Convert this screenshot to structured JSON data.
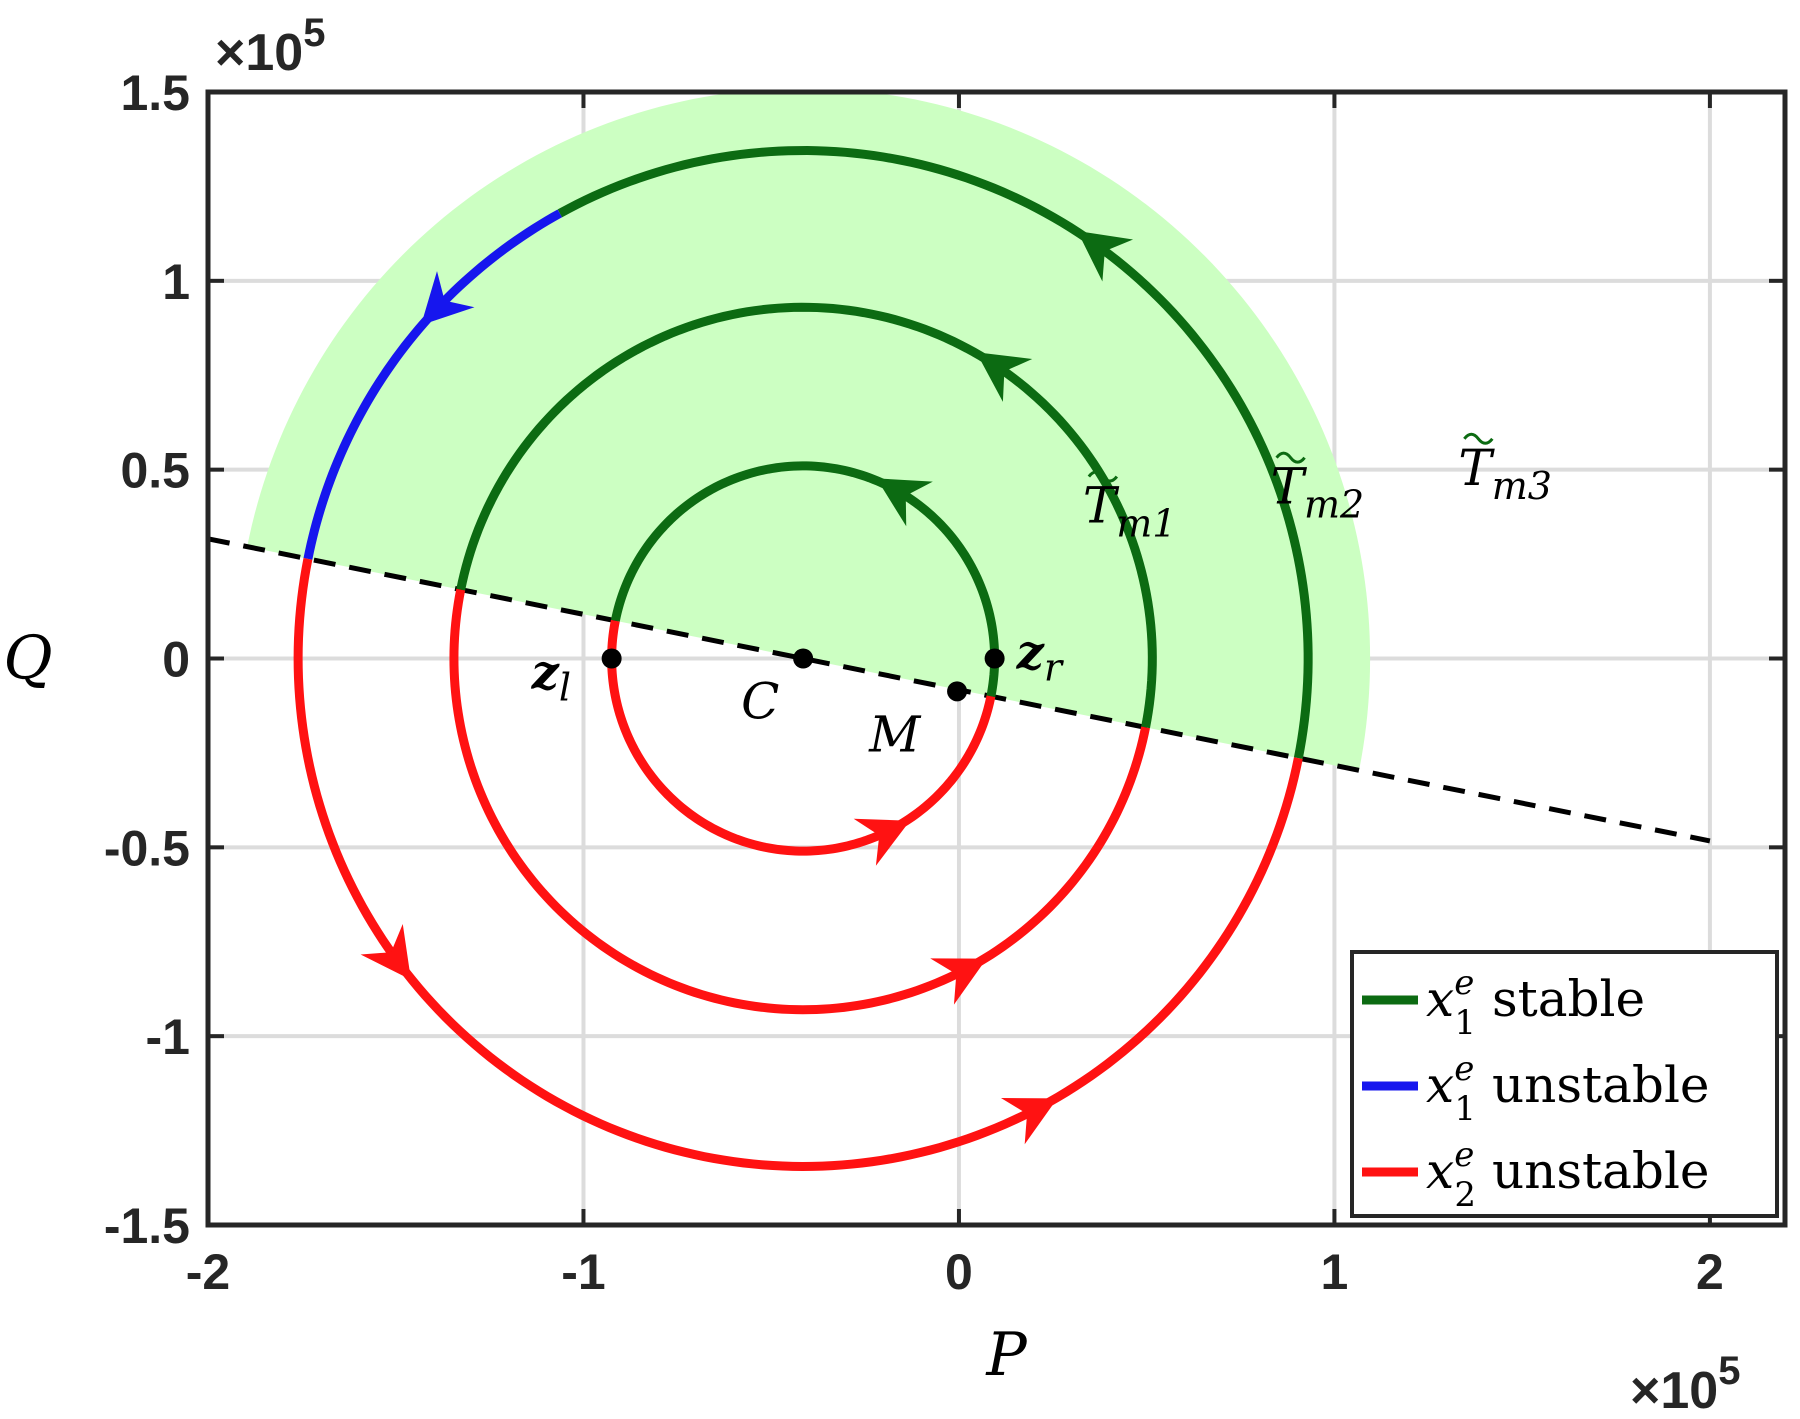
{
  "chart_data": {
    "type": "line",
    "xlabel": "P",
    "ylabel": "Q",
    "x_multiplier": "×10",
    "x_multiplier_exp": "5",
    "y_multiplier": "×10",
    "y_multiplier_exp": "5",
    "xlim": [
      -2.0,
      2.2
    ],
    "ylim": [
      -1.5,
      1.5
    ],
    "x_ticks": [
      -2,
      -1,
      0,
      1,
      2
    ],
    "x_tick_labels": [
      "-2",
      "-1",
      "0",
      "1",
      "2"
    ],
    "y_ticks": [
      -1.5,
      -1,
      -0.5,
      0,
      0.5,
      1,
      1.5
    ],
    "y_tick_labels": [
      "-1.5",
      "-1",
      "-0.5",
      "0",
      "0.5",
      "1",
      "1.5"
    ],
    "grid": true,
    "center": {
      "label": "C",
      "x": -0.415,
      "y": 0.0
    },
    "radii": [
      0.51,
      0.93,
      1.345
    ],
    "dashed_line": {
      "slope": -0.2,
      "intercept": -0.083,
      "x_range": [
        -2.0,
        2.0
      ]
    },
    "shaded_region": {
      "name": "T̃_m3 region",
      "color": "#ccffc2",
      "radius": 1.51,
      "center": {
        "x": -0.415,
        "y": 0.0
      }
    },
    "points": [
      {
        "label_main": "z",
        "label_sub": "l",
        "x": -0.925,
        "y": 0.0
      },
      {
        "label_main": "C",
        "label_sub": "",
        "x": -0.415,
        "y": 0.0
      },
      {
        "label_main": "M",
        "label_sub": "",
        "x": -0.005,
        "y": -0.087
      },
      {
        "label_main": "z",
        "label_sub": "r",
        "x": 0.095,
        "y": 0.0
      }
    ],
    "region_labels": [
      {
        "main": "T",
        "sub": "m1",
        "x": 0.33,
        "y": 0.36
      },
      {
        "main": "T",
        "sub": "m2",
        "x": 0.83,
        "y": 0.41
      },
      {
        "main": "T",
        "sub": "m3",
        "x": 1.33,
        "y": 0.46
      }
    ],
    "series": [
      {
        "name_var": "x",
        "name_sup": "e",
        "name_sub": "1",
        "name_word": "stable",
        "color": "#0c6b12"
      },
      {
        "name_var": "x",
        "name_sup": "e",
        "name_sub": "1",
        "name_word": "unstable",
        "color": "#1616ee"
      },
      {
        "name_var": "x",
        "name_sup": "e",
        "name_sub": "2",
        "name_word": "unstable",
        "color": "#ff1212"
      }
    ],
    "legend_position": "bottom-right"
  }
}
